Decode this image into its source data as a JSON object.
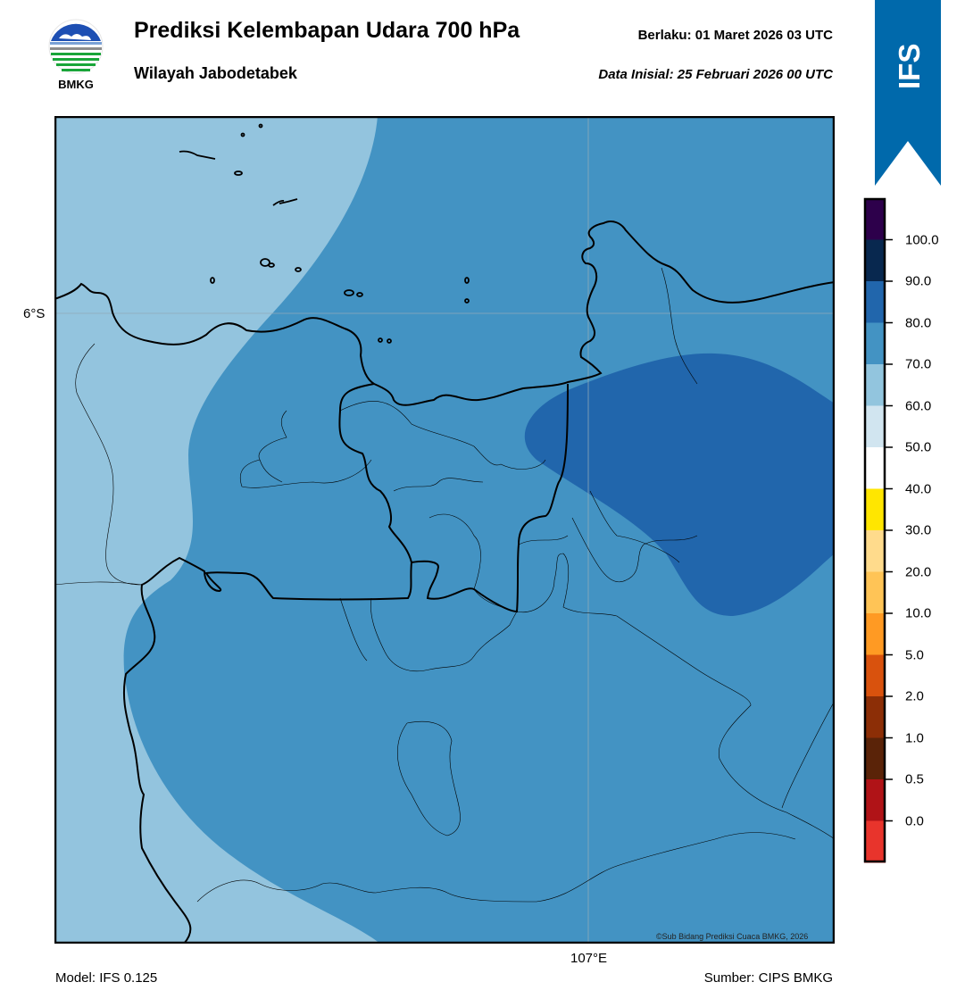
{
  "header": {
    "title": "Prediksi Kelembapan Udara 700 hPa",
    "subtitle": "Wilayah Jabodetabek",
    "valid_label": "Berlaku:  01 Maret 2026 03 UTC",
    "init_label": "Data Inisial:  25 Februari 2026 00 UTC",
    "logo_text": "BMKG",
    "badge_text": "IFS"
  },
  "map": {
    "lat_tick": "6°S",
    "lon_tick": "107°E",
    "copyright": "©Sub Bidang Prediksi Cuaca BMKG, 2026",
    "fill_colors": {
      "60_70": "#93c4de",
      "70_80": "#4393c3",
      "80_90": "#2166ac"
    }
  },
  "footer": {
    "model": "Model: IFS 0.125",
    "source": "Sumber: CIPS BMKG"
  },
  "colorbar": {
    "labels": [
      "100.0",
      "90.0",
      "80.0",
      "70.0",
      "60.0",
      "50.0",
      "40.0",
      "30.0",
      "20.0",
      "10.0",
      "5.0",
      "2.0",
      "1.0",
      "0.5",
      "0.0"
    ],
    "colors_top_to_bottom": [
      "#2d004b",
      "#08284f",
      "#2166ac",
      "#4393c3",
      "#92c5de",
      "#d1e5f0",
      "#ffffff",
      "#ffe600",
      "#ffdb8c",
      "#ffc456",
      "#ff9a23",
      "#d9520d",
      "#8c2e06",
      "#5a2308",
      "#b01317",
      "#e8342c"
    ]
  }
}
